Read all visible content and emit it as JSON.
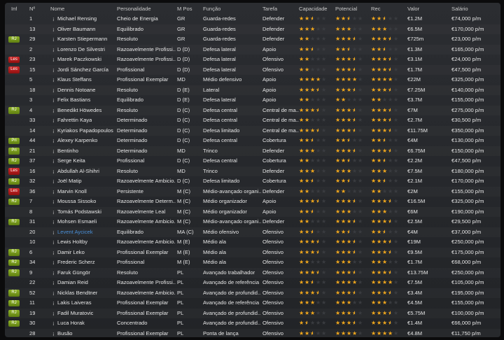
{
  "headers": {
    "inf": "Inf",
    "num": "Nº",
    "name": "Nome",
    "personality": "Personalidade",
    "pos": "M Pos",
    "role": "Função",
    "duty": "Tarefa",
    "ability": "Capacidade",
    "potential": "Potencial",
    "rec": "Rec",
    "value": "Valor",
    "wage": "Salário"
  },
  "colors": {
    "badge_RJ": "#7a9a1a",
    "badge_Pri": "#7a9a1a",
    "badge_Les": "#b01818",
    "star": "#f2a81c",
    "highlight_name": "#4a8fd6"
  },
  "rows": [
    {
      "inf": "",
      "num": "1",
      "name": "Michael Rensing",
      "personality": "Cheio de Energia",
      "pos": "GR",
      "role": "Guarda-redes",
      "duty": "Defender",
      "ability": 2.5,
      "potential": 2.5,
      "rec": 2.5,
      "value": "€1.2M",
      "wage": "€74,000 p/m"
    },
    {
      "inf": "",
      "num": "13",
      "name": "Oliver Baumann",
      "personality": "Equilibrado",
      "pos": "GR",
      "role": "Guarda-redes",
      "duty": "Defender",
      "ability": 3,
      "potential": 3,
      "rec": 3,
      "value": "€6.5M",
      "wage": "€170,000 p/m"
    },
    {
      "inf": "RJ",
      "num": "29",
      "name": "Karsten Stiepermann",
      "personality": "Resoluto",
      "pos": "GR",
      "role": "Guarda-redes",
      "duty": "Defender",
      "ability": 2,
      "potential": 3.5,
      "rec": 3.5,
      "value": "€725m",
      "wage": "€23,000 p/m"
    },
    {
      "inf": "",
      "num": "2",
      "name": "Lorenzo De Silvestri",
      "personality": "Razoavelmente Profissi..",
      "pos": "D (D)",
      "role": "Defesa lateral",
      "duty": "Apoio",
      "ability": 2.5,
      "potential": 2.5,
      "rec": 2.5,
      "value": "€1.3M",
      "wage": "€165,000 p/m"
    },
    {
      "inf": "Les",
      "num": "23",
      "name": "Marek Paczkowski",
      "personality": "Razoavelmente Profissi..",
      "pos": "D (D)",
      "role": "Defesa lateral",
      "duty": "Ofensivo",
      "ability": 2,
      "potential": 3.5,
      "rec": 3.5,
      "value": "€3.1M",
      "wage": "€24,000 p/m"
    },
    {
      "inf": "Les",
      "num": "15",
      "name": "Jordi Sánchez García",
      "personality": "Profissional",
      "pos": "D (D)",
      "role": "Defesa lateral",
      "duty": "Ofensivo",
      "ability": 2,
      "potential": 3.5,
      "rec": 3.5,
      "value": "€1.7M",
      "wage": "€47,500 p/m"
    },
    {
      "inf": "",
      "num": "5",
      "name": "Klaus Steffans",
      "personality": "Profissional Exemplar",
      "pos": "MD",
      "role": "Médio defensivo",
      "duty": "Apoio",
      "ability": 4,
      "potential": 4,
      "rec": 4,
      "value": "€22M",
      "wage": "€325,000 p/m"
    },
    {
      "inf": "",
      "num": "18",
      "name": "Dennis Notoane",
      "personality": "Resoluto",
      "pos": "D (E)",
      "role": "Lateral",
      "duty": "Apoio",
      "ability": 3.5,
      "potential": 3.5,
      "rec": 3.5,
      "value": "€7.25M",
      "wage": "€140,000 p/m"
    },
    {
      "inf": "",
      "num": "3",
      "name": "Felix Bastians",
      "personality": "Equilibrado",
      "pos": "D (E)",
      "role": "Defesa lateral",
      "duty": "Apoio",
      "ability": 2,
      "potential": 2,
      "rec": 2,
      "value": "€3.7M",
      "wage": "€155,000 p/m"
    },
    {
      "inf": "RJ",
      "num": "4",
      "name": "Benedikt Höwedes",
      "personality": "Resoluto",
      "pos": "D (C)",
      "role": "Defesa central",
      "duty": "Central de ma..",
      "ability": 3.5,
      "potential": 3.5,
      "rec": 3.5,
      "value": "€7M",
      "wage": "€275,000 p/m"
    },
    {
      "inf": "",
      "num": "33",
      "name": "Fahrettin Kaya",
      "personality": "Determinado",
      "pos": "D (C)",
      "role": "Defesa central",
      "duty": "Central de ma..",
      "ability": 2,
      "potential": 3.5,
      "rec": 3.5,
      "value": "€2.7M",
      "wage": "€30,500 p/m"
    },
    {
      "inf": "",
      "num": "14",
      "name": "Kyriakos Papadopoulos",
      "personality": "Determinado",
      "pos": "D (C)",
      "role": "Defesa limitado",
      "duty": "Central de ma..",
      "ability": 3.5,
      "potential": 3.5,
      "rec": 3.5,
      "value": "€11.75M",
      "wage": "€350,000 p/m"
    },
    {
      "inf": "Pri",
      "num": "44",
      "name": "Alexey Karpenko",
      "personality": "Determinado",
      "pos": "D (C)",
      "role": "Defesa central",
      "duty": "Cobertura",
      "ability": 2.5,
      "potential": 2.5,
      "rec": 2.5,
      "value": "€4M",
      "wage": "€130,000 p/m"
    },
    {
      "inf": "Pri",
      "num": "21",
      "name": "Bentinho",
      "personality": "Determinado",
      "pos": "MD",
      "role": "Trinco",
      "duty": "Defender",
      "ability": 3,
      "potential": 3.5,
      "rec": 3.5,
      "value": "€6.75M",
      "wage": "€150,000 p/m"
    },
    {
      "inf": "RJ",
      "num": "37",
      "name": "Serge Keita",
      "personality": "Profissional",
      "pos": "D (C)",
      "role": "Defesa central",
      "duty": "Cobertura",
      "ability": 2,
      "potential": 2.5,
      "rec": 2.5,
      "value": "€2.2M",
      "wage": "€47,500 p/m"
    },
    {
      "inf": "Les",
      "num": "16",
      "name": "Abdullah Al-Shihri",
      "personality": "Resoluto",
      "pos": "MD",
      "role": "Trinco",
      "duty": "Defender",
      "ability": 3,
      "potential": 3,
      "rec": 3,
      "value": "€7.5M",
      "wage": "€180,000 p/m"
    },
    {
      "inf": "RJ",
      "num": "32",
      "name": "Joël Matip",
      "personality": "Razoavelmente Ambicio..",
      "pos": "D (C)",
      "role": "Defesa limitado",
      "duty": "Cobertura",
      "ability": 2.5,
      "potential": 2.5,
      "rec": 2.5,
      "value": "€2.1M",
      "wage": "€170,000 p/m"
    },
    {
      "inf": "Les",
      "num": "36",
      "name": "Marvin Knoll",
      "personality": "Persistente",
      "pos": "M (C)",
      "role": "Médio-avançado organi..",
      "duty": "Defender",
      "ability": 2,
      "potential": 2,
      "rec": 2,
      "value": "€2M",
      "wage": "€155,000 p/m"
    },
    {
      "inf": "RJ",
      "num": "7",
      "name": "Moussa Sissoko",
      "personality": "Razoavelmente Determ..",
      "pos": "M (C)",
      "role": "Médio organizador",
      "duty": "Apoio",
      "ability": 3.5,
      "potential": 3.5,
      "rec": 3.5,
      "value": "€16.5M",
      "wage": "€325,000 p/m"
    },
    {
      "inf": "",
      "num": "8",
      "name": "Tomás Podstawski",
      "personality": "Razoavelmente Leal",
      "pos": "M (C)",
      "role": "Médio organizador",
      "duty": "Apoio",
      "ability": 2.5,
      "potential": 3,
      "rec": 3,
      "value": "€6M",
      "wage": "€190,000 p/m"
    },
    {
      "inf": "RJ",
      "num": "31",
      "name": "Mohsen Esmaeli",
      "personality": "Razoavelmente Ambicio..",
      "pos": "M (C)",
      "role": "Médio-avançado organi..",
      "duty": "Defender",
      "ability": 2,
      "potential": 3.5,
      "rec": 3.5,
      "value": "€2.5M",
      "wage": "€29,500 p/m"
    },
    {
      "inf": "",
      "num": "20",
      "name": "Levent Aycicek",
      "highlight": true,
      "personality": "Equilibrado",
      "pos": "MA (C)",
      "role": "Médio ofensivo",
      "duty": "Ofensivo",
      "ability": 2.5,
      "potential": 2.5,
      "rec": 2.5,
      "value": "€4M",
      "wage": "€37,000 p/m"
    },
    {
      "inf": "",
      "num": "10",
      "name": "Lewis Holtby",
      "personality": "Razoavelmente Ambicio..",
      "pos": "M (E)",
      "role": "Médio ala",
      "duty": "Ofensivo",
      "ability": 3.5,
      "potential": 3.5,
      "rec": 3.5,
      "value": "€19M",
      "wage": "€250,000 p/m"
    },
    {
      "inf": "RJ",
      "num": "6",
      "name": "Damir Leko",
      "personality": "Profissional Exemplar",
      "pos": "M (E)",
      "role": "Médio ala",
      "duty": "Ofensivo",
      "ability": 3.5,
      "potential": 3.5,
      "rec": 3.5,
      "value": "€9.5M",
      "wage": "€175,000 p/m"
    },
    {
      "inf": "RJ",
      "num": "34",
      "name": "Frederic Scherz",
      "personality": "Profissional",
      "pos": "M (E)",
      "role": "Médio ala",
      "duty": "Ofensivo",
      "ability": 2,
      "potential": 3,
      "rec": 3,
      "value": "€1.7M",
      "wage": "€68,000 p/m"
    },
    {
      "inf": "RJ",
      "num": "9",
      "name": "Faruk Güngör",
      "personality": "Resoluto",
      "pos": "PL",
      "role": "Avançado trabalhador",
      "duty": "Ofensivo",
      "ability": 3.5,
      "potential": 3.5,
      "rec": 3.5,
      "value": "€13.75M",
      "wage": "€250,000 p/m"
    },
    {
      "inf": "",
      "num": "22",
      "name": "Damian Reid",
      "personality": "Razoavelmente Profissi..",
      "pos": "PL",
      "role": "Avançado de referência",
      "duty": "Ofensivo",
      "ability": 2.5,
      "potential": 4,
      "rec": 4,
      "value": "€7.5M",
      "wage": "€105,000 p/m"
    },
    {
      "inf": "RJ",
      "num": "52",
      "name": "Nicklas Bendtner",
      "personality": "Razoavelmente Ambicio..",
      "pos": "PL",
      "role": "Avançado de profundid..",
      "duty": "Ofensivo",
      "ability": 3.5,
      "potential": 3.5,
      "rec": 3.5,
      "value": "€3.4M",
      "wage": "€195,000 p/m"
    },
    {
      "inf": "RJ",
      "num": "11",
      "name": "Lakis Laiveras",
      "personality": "Profissional Exemplar",
      "pos": "PL",
      "role": "Avançado de referência",
      "duty": "Ofensivo",
      "ability": 3,
      "potential": 3,
      "rec": 3,
      "value": "€4.5M",
      "wage": "€155,000 p/m"
    },
    {
      "inf": "RJ",
      "num": "19",
      "name": "Fadil Muratovic",
      "personality": "Profissional Exemplar",
      "pos": "PL",
      "role": "Avançado de profundid..",
      "duty": "Ofensivo",
      "ability": 3,
      "potential": 3.5,
      "rec": 3.5,
      "value": "€5.75M",
      "wage": "€100,000 p/m"
    },
    {
      "inf": "RJ",
      "num": "30",
      "name": "Luca Horak",
      "personality": "Concentrado",
      "pos": "PL",
      "role": "Avançado de profundid..",
      "duty": "Ofensivo",
      "ability": 1.5,
      "potential": 3.5,
      "rec": 3.5,
      "value": "€1.4M",
      "wage": "€66,000 p/m"
    },
    {
      "inf": "",
      "num": "28",
      "name": "Busão",
      "personality": "Profissional Exemplar",
      "pos": "PL",
      "role": "Ponta de lança",
      "duty": "Ofensivo",
      "ability": 2.5,
      "potential": 4,
      "rec": 4,
      "value": "€4.8M",
      "wage": "€11,750 p/m"
    }
  ]
}
